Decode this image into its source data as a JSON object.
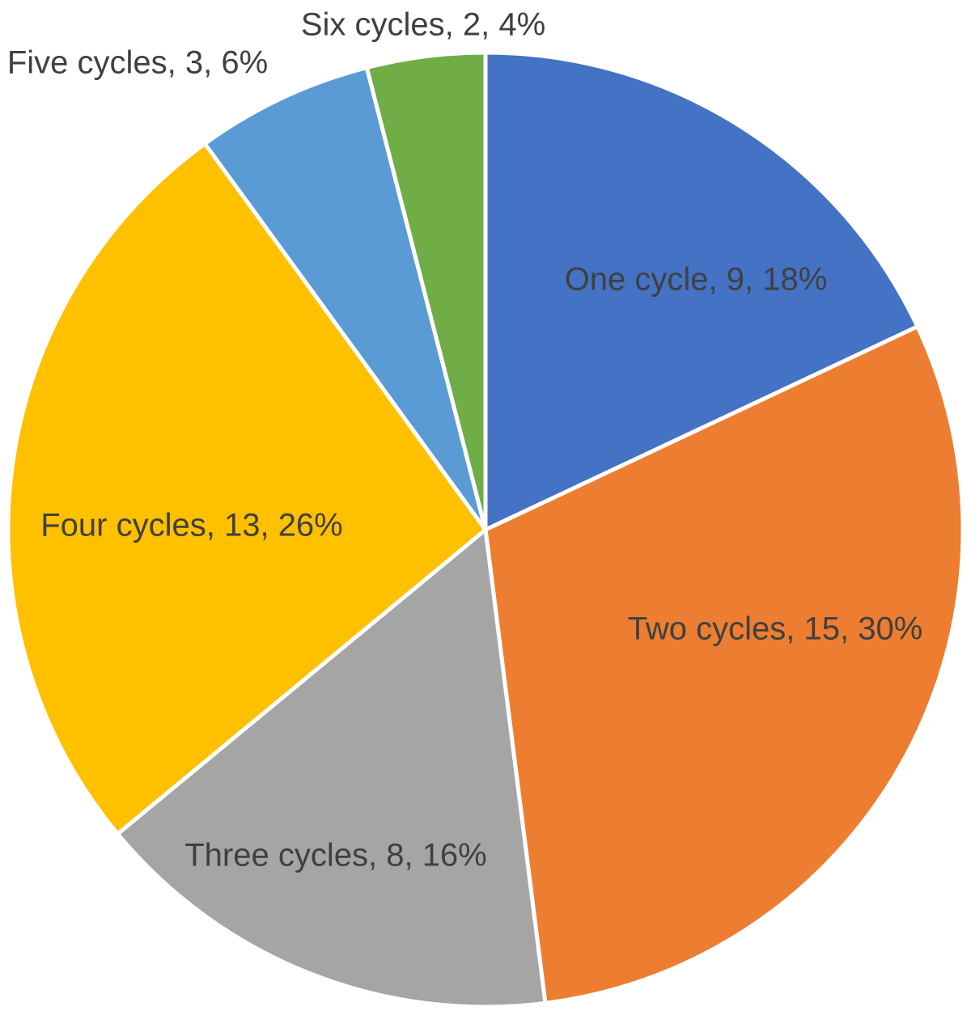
{
  "chart_data": {
    "type": "pie",
    "title": "",
    "slices": [
      {
        "label": "One cycle",
        "value": 9,
        "percent": "18%",
        "color": "#4472C4"
      },
      {
        "label": "Two cycles",
        "value": 15,
        "percent": "30%",
        "color": "#ED7D31"
      },
      {
        "label": "Three cycles",
        "value": 8,
        "percent": "16%",
        "color": "#A5A5A5"
      },
      {
        "label": "Four cycles",
        "value": 13,
        "percent": "26%",
        "color": "#FFC000"
      },
      {
        "label": "Five cycles",
        "value": 3,
        "percent": "6%",
        "color": "#5B9BD5"
      },
      {
        "label": "Six cycles",
        "value": 2,
        "percent": "4%",
        "color": "#70AD47"
      }
    ],
    "start_angle": "12 o'clock",
    "direction": "clockwise",
    "data_labels": "category, value, percentage",
    "legend": "none"
  }
}
